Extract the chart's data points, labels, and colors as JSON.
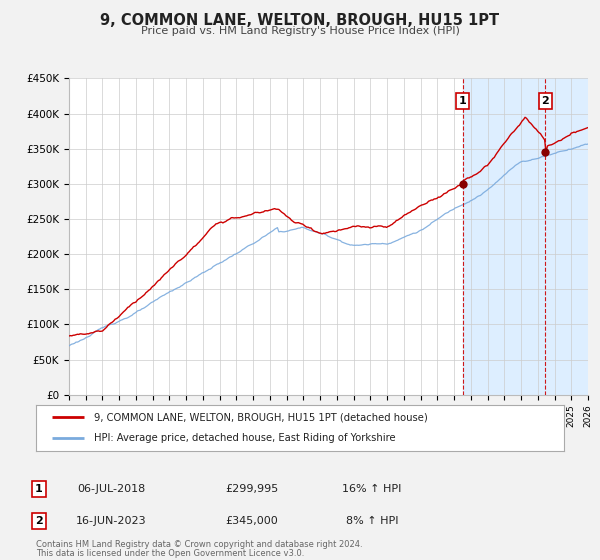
{
  "title": "9, COMMON LANE, WELTON, BROUGH, HU15 1PT",
  "subtitle": "Price paid vs. HM Land Registry's House Price Index (HPI)",
  "legend_line1": "9, COMMON LANE, WELTON, BROUGH, HU15 1PT (detached house)",
  "legend_line2": "HPI: Average price, detached house, East Riding of Yorkshire",
  "footnote1": "Contains HM Land Registry data © Crown copyright and database right 2024.",
  "footnote2": "This data is licensed under the Open Government Licence v3.0.",
  "annotation1": {
    "label": "1",
    "date": "06-JUL-2018",
    "price": "£299,995",
    "hpi": "16% ↑ HPI",
    "x_year": 2018.52
  },
  "annotation2": {
    "label": "2",
    "date": "16-JUN-2023",
    "price": "£345,000",
    "hpi": "8% ↑ HPI",
    "x_year": 2023.46
  },
  "property_color": "#cc0000",
  "hpi_color": "#7aaadd",
  "yticks": [
    0,
    50000,
    100000,
    150000,
    200000,
    250000,
    300000,
    350000,
    400000,
    450000
  ],
  "ytick_labels": [
    "£0",
    "£50K",
    "£100K",
    "£150K",
    "£200K",
    "£250K",
    "£300K",
    "£350K",
    "£400K",
    "£450K"
  ],
  "xmin": 1995,
  "xmax": 2026,
  "ymin": 0,
  "ymax": 450000,
  "vline1_x": 2018.52,
  "vline2_x": 2023.46,
  "marker1_property_y": 299995,
  "marker2_property_y": 345000,
  "bg_color": "#f2f2f2",
  "plot_bg": "#ffffff",
  "shade_color": "#ddeeff"
}
